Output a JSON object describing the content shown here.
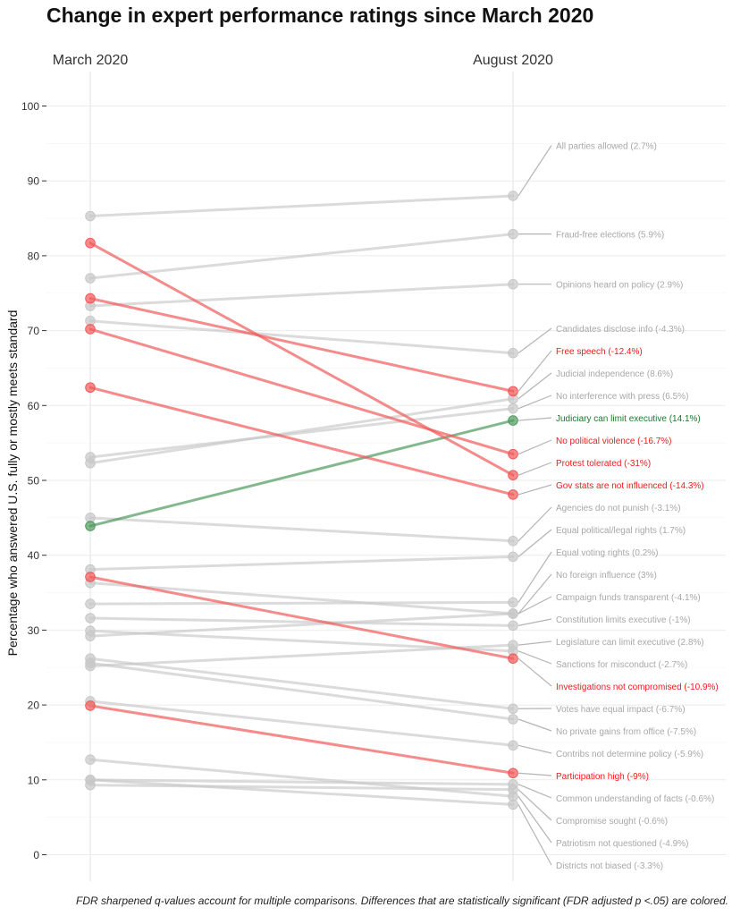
{
  "chart_data": {
    "type": "line",
    "title": "Change in expert performance ratings since March 2020",
    "x": [
      "March 2020",
      "August 2020"
    ],
    "ylabel": "Percentage who answered U.S. fully or mostly meets standard",
    "ylim": [
      -3,
      104
    ],
    "yticks": [
      0,
      10,
      20,
      30,
      40,
      50,
      60,
      70,
      80,
      90,
      100
    ],
    "grid": true,
    "caption": "FDR sharpened q-values account for multiple comparisons. Differences that are statistically significant (FDR adjusted p <.05) are colored.",
    "colors": {
      "neutral": "#c8c8c8",
      "decrease": "#f15a5a",
      "increase": "#4e9a5e",
      "neutral_label": "#a8a8a8",
      "decrease_label": "#ee1c1c",
      "increase_label": "#1a7a2a"
    },
    "series": [
      {
        "name": "All parties allowed (2.7%)",
        "values": [
          85.3,
          88.0
        ],
        "status": "neutral"
      },
      {
        "name": "Fraud-free elections (5.9%)",
        "values": [
          77.0,
          82.9
        ],
        "status": "neutral"
      },
      {
        "name": "Opinions heard on policy (2.9%)",
        "values": [
          73.3,
          76.2
        ],
        "status": "neutral"
      },
      {
        "name": "Candidates disclose info (-4.3%)",
        "values": [
          71.3,
          67.0
        ],
        "status": "neutral"
      },
      {
        "name": "Free speech (-12.4%)",
        "values": [
          74.3,
          61.9
        ],
        "status": "decrease"
      },
      {
        "name": "Judicial independence (8.6%)",
        "values": [
          52.3,
          60.9
        ],
        "status": "neutral"
      },
      {
        "name": "No interference with press (6.5%)",
        "values": [
          53.1,
          59.6
        ],
        "status": "neutral"
      },
      {
        "name": "Judiciary can limit executive (14.1%)",
        "values": [
          43.9,
          58.0
        ],
        "status": "increase"
      },
      {
        "name": "No political violence (-16.7%)",
        "values": [
          70.2,
          53.5
        ],
        "status": "decrease"
      },
      {
        "name": "Protest tolerated (-31%)",
        "values": [
          81.7,
          50.7
        ],
        "status": "decrease"
      },
      {
        "name": "Gov stats are not influenced (-14.3%)",
        "values": [
          62.4,
          48.1
        ],
        "status": "decrease"
      },
      {
        "name": "Agencies do not punish (-3.1%)",
        "values": [
          45.0,
          41.9
        ],
        "status": "neutral"
      },
      {
        "name": "Equal political/legal rights (1.7%)",
        "values": [
          38.1,
          39.8
        ],
        "status": "neutral"
      },
      {
        "name": "Equal voting rights (0.2%)",
        "values": [
          33.5,
          33.7
        ],
        "status": "neutral"
      },
      {
        "name": "No foreign influence (3%)",
        "values": [
          29.2,
          32.2
        ],
        "status": "neutral"
      },
      {
        "name": "Campaign funds transparent (-4.1%)",
        "values": [
          36.3,
          32.2
        ],
        "status": "neutral"
      },
      {
        "name": "Constitution limits executive (-1%)",
        "values": [
          31.6,
          30.6
        ],
        "status": "neutral"
      },
      {
        "name": "Legislature can limit executive (2.8%)",
        "values": [
          25.2,
          28.0
        ],
        "status": "neutral"
      },
      {
        "name": "Sanctions for misconduct (-2.7%)",
        "values": [
          29.9,
          27.2
        ],
        "status": "neutral"
      },
      {
        "name": "Investigations not compromised (-10.9%)",
        "values": [
          37.1,
          26.2
        ],
        "status": "decrease"
      },
      {
        "name": "Votes have equal impact (-6.7%)",
        "values": [
          26.2,
          19.5
        ],
        "status": "neutral"
      },
      {
        "name": "No private gains from office (-7.5%)",
        "values": [
          25.6,
          18.1
        ],
        "status": "neutral"
      },
      {
        "name": "Contribs not determine policy (-5.9%)",
        "values": [
          20.5,
          14.6
        ],
        "status": "neutral"
      },
      {
        "name": "Participation high (-9%)",
        "values": [
          19.9,
          10.9
        ],
        "status": "decrease"
      },
      {
        "name": "Common understanding of facts (-0.6%)",
        "values": [
          10.0,
          9.4
        ],
        "status": "neutral"
      },
      {
        "name": "Compromise sought (-0.6%)",
        "values": [
          9.3,
          8.7
        ],
        "status": "neutral"
      },
      {
        "name": "Patriotism not questioned (-4.9%)",
        "values": [
          12.7,
          7.8
        ],
        "status": "neutral"
      },
      {
        "name": "Districts not biased (-3.3%)",
        "values": [
          10.0,
          6.7
        ],
        "status": "neutral"
      }
    ]
  }
}
